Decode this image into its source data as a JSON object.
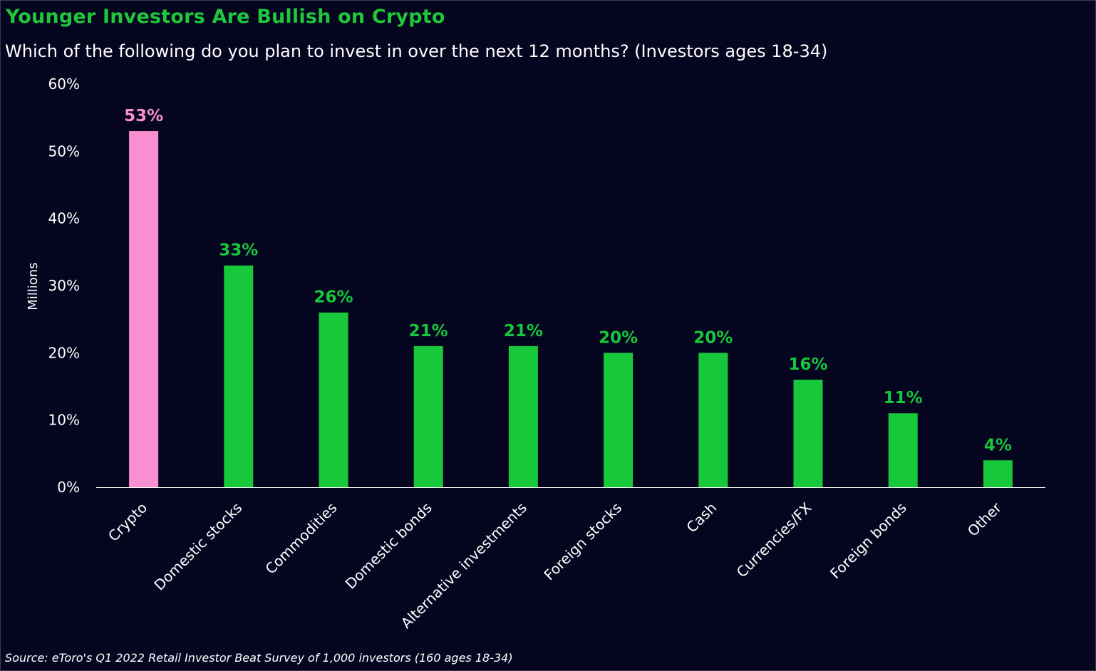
{
  "chart_data": {
    "type": "bar",
    "title": "Younger Investors Are Bullish on Crypto",
    "subtitle": "Which of the following do you plan to invest in over the next 12 months? (Investors ages 18-34)",
    "ylabel": "Millions",
    "xlabel": "",
    "ylim": [
      0,
      60
    ],
    "yticks": [
      0,
      10,
      20,
      30,
      40,
      50,
      60
    ],
    "ytick_labels": [
      "0%",
      "10%",
      "20%",
      "30%",
      "40%",
      "50%",
      "60%"
    ],
    "categories": [
      "Crypto",
      "Domestic stocks",
      "Commodities",
      "Domestic bonds",
      "Alternative investments",
      "Foreign stocks",
      "Cash",
      "Currencies/FX",
      "Foreign bonds",
      "Other"
    ],
    "values": [
      53,
      33,
      26,
      21,
      21,
      20,
      20,
      16,
      11,
      4
    ],
    "data_labels": [
      "53%",
      "33%",
      "26%",
      "21%",
      "21%",
      "20%",
      "20%",
      "16%",
      "11%",
      "4%"
    ],
    "bar_colors": [
      "#f98fd0",
      "#17c83b",
      "#17c83b",
      "#17c83b",
      "#17c83b",
      "#17c83b",
      "#17c83b",
      "#17c83b",
      "#17c83b",
      "#17c83b"
    ],
    "grid": false,
    "legend": "none"
  },
  "footer": {
    "source": "Source: eToro's Q1 2022 Retail Investor Beat Survey of 1,000 investors (160 ages 18-34)"
  },
  "colors": {
    "background": "#05051f",
    "accent": "#1dc93a",
    "highlight": "#f98fd0",
    "text": "#ffffff"
  }
}
